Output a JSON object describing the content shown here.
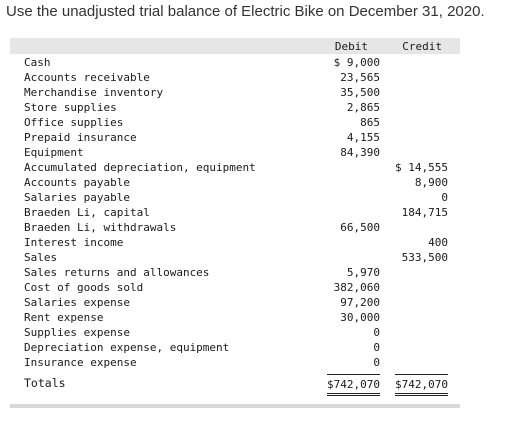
{
  "prompt": "Use the unadjusted trial balance of Electric Bike on December 31, 2020.",
  "headers": {
    "debit": "Debit",
    "credit": "Credit"
  },
  "rows": [
    {
      "account": "Cash",
      "debit": "$ 9,000",
      "credit": ""
    },
    {
      "account": "Accounts receivable",
      "debit": "23,565",
      "credit": ""
    },
    {
      "account": "Merchandise inventory",
      "debit": "35,500",
      "credit": ""
    },
    {
      "account": "Store supplies",
      "debit": "2,865",
      "credit": ""
    },
    {
      "account": "Office supplies",
      "debit": "865",
      "credit": ""
    },
    {
      "account": "Prepaid insurance",
      "debit": "4,155",
      "credit": ""
    },
    {
      "account": "Equipment",
      "debit": "84,390",
      "credit": ""
    },
    {
      "account": "Accumulated depreciation, equipment",
      "debit": "",
      "credit": "$ 14,555"
    },
    {
      "account": "Accounts payable",
      "debit": "",
      "credit": "8,900"
    },
    {
      "account": "Salaries payable",
      "debit": "",
      "credit": "0"
    },
    {
      "account": "Braeden Li, capital",
      "debit": "",
      "credit": "184,715"
    },
    {
      "account": "Braeden Li, withdrawals",
      "debit": "66,500",
      "credit": ""
    },
    {
      "account": "Interest income",
      "debit": "",
      "credit": "400"
    },
    {
      "account": "Sales",
      "debit": "",
      "credit": "533,500"
    },
    {
      "account": "Sales returns and allowances",
      "debit": "5,970",
      "credit": ""
    },
    {
      "account": "Cost of goods sold",
      "debit": "382,060",
      "credit": ""
    },
    {
      "account": "Salaries expense",
      "debit": "97,200",
      "credit": ""
    },
    {
      "account": "Rent expense",
      "debit": "30,000",
      "credit": ""
    },
    {
      "account": "Supplies expense",
      "debit": "0",
      "credit": ""
    },
    {
      "account": "Depreciation expense, equipment",
      "debit": "0",
      "credit": ""
    },
    {
      "account": "Insurance expense",
      "debit": "0",
      "credit": ""
    }
  ],
  "totals": {
    "label": "Totals",
    "debit": "$742,070",
    "credit": "$742,070"
  }
}
